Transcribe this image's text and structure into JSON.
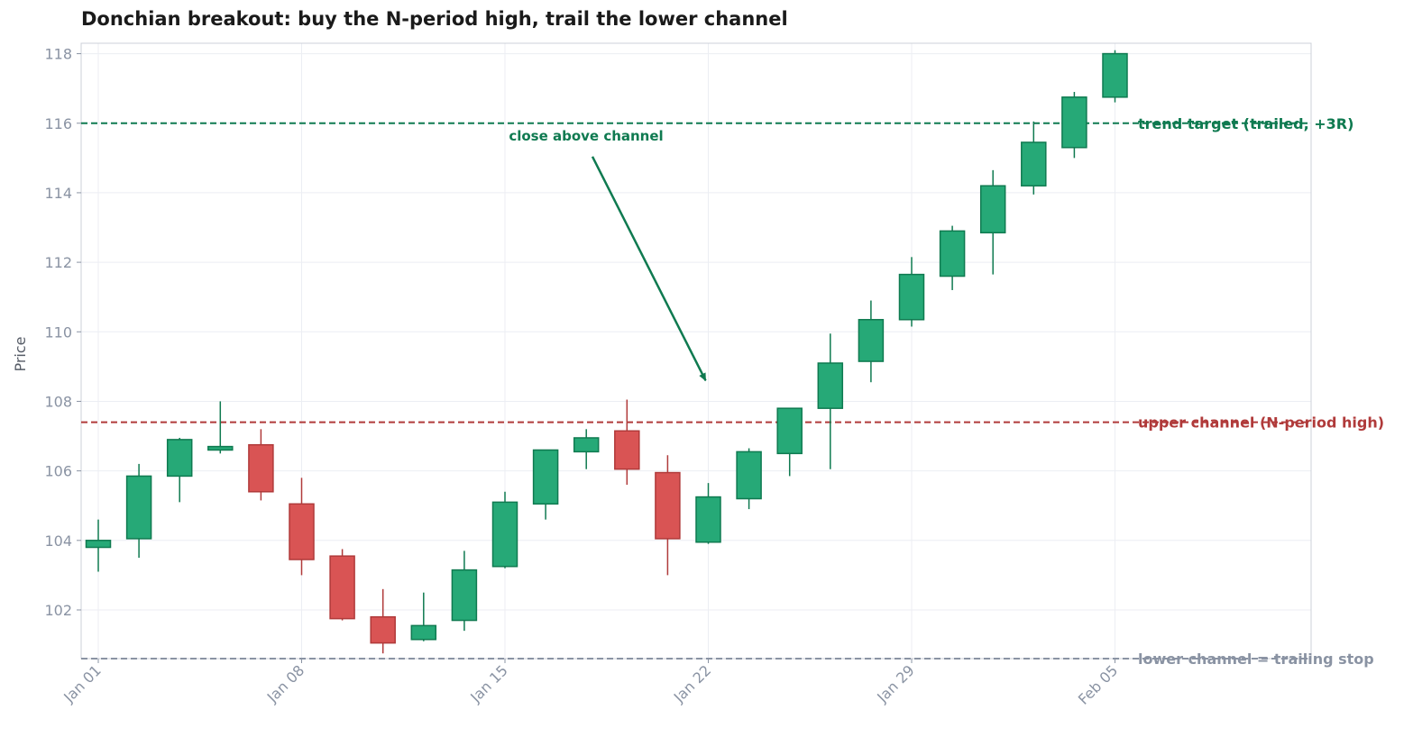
{
  "chart_data": {
    "type": "candlestick",
    "title": "Donchian breakout: buy the N-period high, trail the lower channel",
    "ylabel": "Price",
    "xlabel": "",
    "ylim": [
      100.6,
      118.3
    ],
    "yticks": [
      102,
      104,
      106,
      108,
      110,
      112,
      114,
      116,
      118
    ],
    "xticks": [
      "Jan 01",
      "Jan 08",
      "Jan 15",
      "Jan 22",
      "Jan 29",
      "Feb 05"
    ],
    "grid": true,
    "colors": {
      "up": "#26a977",
      "up_edge": "#0f7a50",
      "down": "#d95454",
      "down_edge": "#b03a3a",
      "grid": "#eceef3",
      "frame": "#ccd0d8"
    },
    "candles": [
      {
        "date": "Jan 01",
        "open": 103.8,
        "high": 104.6,
        "low": 103.1,
        "close": 104.0
      },
      {
        "date": "Jan 02",
        "open": 104.05,
        "high": 106.2,
        "low": 103.5,
        "close": 105.85
      },
      {
        "date": "Jan 03",
        "open": 105.85,
        "high": 106.95,
        "low": 105.1,
        "close": 106.9
      },
      {
        "date": "Jan 04",
        "open": 106.6,
        "high": 108.0,
        "low": 106.5,
        "close": 106.7
      },
      {
        "date": "Jan 05",
        "open": 106.75,
        "high": 107.2,
        "low": 105.15,
        "close": 105.4
      },
      {
        "date": "Jan 06",
        "open": 105.05,
        "high": 105.8,
        "low": 103.0,
        "close": 103.45
      },
      {
        "date": "Jan 07",
        "open": 103.55,
        "high": 103.75,
        "low": 101.7,
        "close": 101.75
      },
      {
        "date": "Jan 08",
        "open": 101.8,
        "high": 102.6,
        "low": 100.75,
        "close": 101.05
      },
      {
        "date": "Jan 09",
        "open": 101.15,
        "high": 102.5,
        "low": 101.1,
        "close": 101.55
      },
      {
        "date": "Jan 10",
        "open": 101.7,
        "high": 103.7,
        "low": 101.4,
        "close": 103.15
      },
      {
        "date": "Jan 11",
        "open": 103.25,
        "high": 105.4,
        "low": 103.2,
        "close": 105.1
      },
      {
        "date": "Jan 12",
        "open": 105.05,
        "high": 106.6,
        "low": 104.6,
        "close": 106.6
      },
      {
        "date": "Jan 13",
        "open": 106.55,
        "high": 107.2,
        "low": 106.05,
        "close": 106.95
      },
      {
        "date": "Jan 14",
        "open": 107.15,
        "high": 108.05,
        "low": 105.6,
        "close": 106.05
      },
      {
        "date": "Jan 15",
        "open": 105.95,
        "high": 106.45,
        "low": 103.0,
        "close": 104.05
      },
      {
        "date": "Jan 16",
        "open": 103.95,
        "high": 105.65,
        "low": 103.9,
        "close": 105.25
      },
      {
        "date": "Jan 17",
        "open": 105.2,
        "high": 106.65,
        "low": 104.9,
        "close": 106.55
      },
      {
        "date": "Jan 18",
        "open": 106.5,
        "high": 107.8,
        "low": 105.85,
        "close": 107.8
      },
      {
        "date": "Jan 19",
        "open": 107.8,
        "high": 109.95,
        "low": 106.05,
        "close": 109.1
      },
      {
        "date": "Jan 20",
        "open": 109.15,
        "high": 110.9,
        "low": 108.55,
        "close": 110.35
      },
      {
        "date": "Jan 21",
        "open": 110.35,
        "high": 112.15,
        "low": 110.15,
        "close": 111.65
      },
      {
        "date": "Jan 22",
        "open": 111.6,
        "high": 113.05,
        "low": 111.2,
        "close": 112.9
      },
      {
        "date": "Jan 23",
        "open": 112.85,
        "high": 114.65,
        "low": 111.65,
        "close": 114.2
      },
      {
        "date": "Jan 24",
        "open": 114.2,
        "high": 116.05,
        "low": 113.95,
        "close": 115.45
      },
      {
        "date": "Jan 25",
        "open": 115.3,
        "high": 116.9,
        "low": 115.0,
        "close": 116.75
      },
      {
        "date": "Jan 26",
        "open": 116.75,
        "high": 118.1,
        "low": 116.6,
        "close": 118.0
      }
    ],
    "reference_lines": [
      {
        "label": "trend target (trailed, +3R)",
        "y": 116.0,
        "color": "#0f7a50"
      },
      {
        "label": "upper channel (N-period high)",
        "y": 107.4,
        "color": "#b03a3a"
      },
      {
        "label": "lower channel = trailing stop",
        "y": 100.6,
        "color": "#8a93a3"
      }
    ],
    "annotation": {
      "text": "close above channel",
      "color": "#0f7a50",
      "target_candle": 15,
      "target_y": 108.6,
      "text_y": 115.3
    }
  }
}
